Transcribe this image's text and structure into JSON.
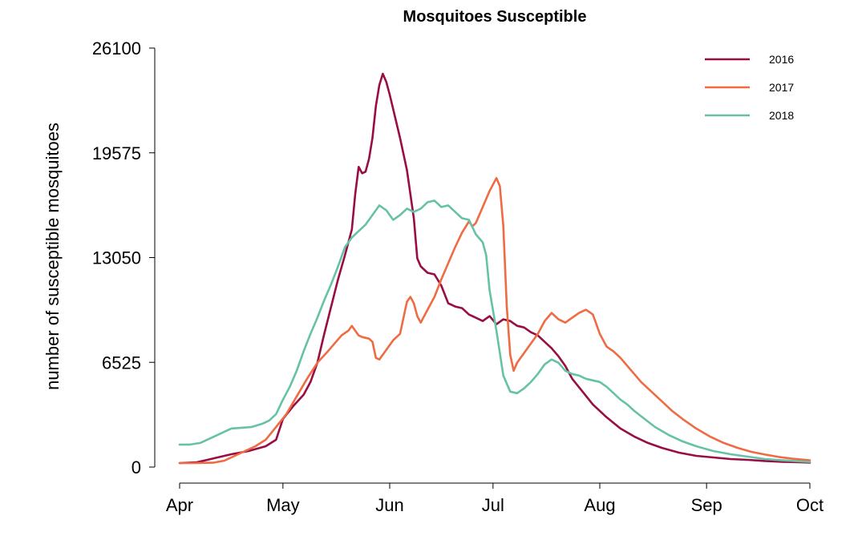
{
  "chart_data": {
    "type": "line",
    "title": "Mosquitoes Susceptible",
    "xlabel": "",
    "ylabel": "number of susceptible mosquitoes",
    "x_axis": {
      "min_day": 0,
      "max_day": 183,
      "ticks": [
        {
          "day": 0,
          "label": "Apr"
        },
        {
          "day": 30,
          "label": "May"
        },
        {
          "day": 61,
          "label": "Jun"
        },
        {
          "day": 91,
          "label": "Jul"
        },
        {
          "day": 122,
          "label": "Aug"
        },
        {
          "day": 153,
          "label": "Sep"
        },
        {
          "day": 183,
          "label": "Oct"
        }
      ]
    },
    "y_axis": {
      "ylim": [
        0,
        26100
      ],
      "ticks": [
        {
          "value": 0,
          "label": "0"
        },
        {
          "value": 6525,
          "label": "6525"
        },
        {
          "value": 13050,
          "label": "13050"
        },
        {
          "value": 19575,
          "label": "19575"
        },
        {
          "value": 26100,
          "label": "26100"
        }
      ]
    },
    "grid": false,
    "legend": "top-right",
    "series": [
      {
        "name": "2016",
        "color": "#990d45",
        "points": [
          [
            0,
            250
          ],
          [
            5,
            300
          ],
          [
            10,
            550
          ],
          [
            15,
            800
          ],
          [
            20,
            1000
          ],
          [
            25,
            1300
          ],
          [
            28,
            1700
          ],
          [
            30,
            3000
          ],
          [
            33,
            3800
          ],
          [
            36,
            4500
          ],
          [
            38,
            5300
          ],
          [
            40,
            6500
          ],
          [
            42,
            8300
          ],
          [
            44,
            10000
          ],
          [
            46,
            11700
          ],
          [
            48,
            13200
          ],
          [
            50,
            14800
          ],
          [
            51,
            17000
          ],
          [
            52,
            18700
          ],
          [
            53,
            18300
          ],
          [
            54,
            18400
          ],
          [
            55,
            19200
          ],
          [
            56,
            20500
          ],
          [
            57,
            22500
          ],
          [
            58,
            23800
          ],
          [
            59,
            24500
          ],
          [
            60,
            24000
          ],
          [
            61,
            23200
          ],
          [
            62,
            22300
          ],
          [
            64,
            20500
          ],
          [
            66,
            18500
          ],
          [
            68,
            15500
          ],
          [
            69,
            13000
          ],
          [
            70,
            12500
          ],
          [
            72,
            12100
          ],
          [
            74,
            12000
          ],
          [
            76,
            11300
          ],
          [
            78,
            10200
          ],
          [
            80,
            10000
          ],
          [
            82,
            9900
          ],
          [
            84,
            9500
          ],
          [
            86,
            9300
          ],
          [
            88,
            9100
          ],
          [
            90,
            9400
          ],
          [
            92,
            8900
          ],
          [
            94,
            9200
          ],
          [
            96,
            9100
          ],
          [
            98,
            8800
          ],
          [
            100,
            8700
          ],
          [
            102,
            8400
          ],
          [
            104,
            8200
          ],
          [
            106,
            7800
          ],
          [
            108,
            7400
          ],
          [
            110,
            6900
          ],
          [
            112,
            6300
          ],
          [
            114,
            5500
          ],
          [
            117,
            4700
          ],
          [
            120,
            3900
          ],
          [
            124,
            3100
          ],
          [
            128,
            2400
          ],
          [
            132,
            1900
          ],
          [
            136,
            1500
          ],
          [
            140,
            1200
          ],
          [
            145,
            900
          ],
          [
            150,
            700
          ],
          [
            155,
            600
          ],
          [
            160,
            500
          ],
          [
            165,
            450
          ],
          [
            170,
            380
          ],
          [
            175,
            330
          ],
          [
            180,
            300
          ],
          [
            183,
            280
          ]
        ]
      },
      {
        "name": "2017",
        "color": "#ee6b43",
        "points": [
          [
            0,
            250
          ],
          [
            5,
            250
          ],
          [
            10,
            280
          ],
          [
            13,
            400
          ],
          [
            16,
            700
          ],
          [
            19,
            1000
          ],
          [
            22,
            1300
          ],
          [
            25,
            1700
          ],
          [
            28,
            2500
          ],
          [
            31,
            3300
          ],
          [
            34,
            4400
          ],
          [
            37,
            5500
          ],
          [
            40,
            6500
          ],
          [
            43,
            7200
          ],
          [
            45,
            7700
          ],
          [
            47,
            8200
          ],
          [
            49,
            8500
          ],
          [
            50,
            8800
          ],
          [
            52,
            8200
          ],
          [
            53,
            8100
          ],
          [
            55,
            8000
          ],
          [
            56,
            7800
          ],
          [
            57,
            6800
          ],
          [
            58,
            6700
          ],
          [
            60,
            7300
          ],
          [
            62,
            7900
          ],
          [
            64,
            8300
          ],
          [
            65,
            9300
          ],
          [
            66,
            10300
          ],
          [
            67,
            10600
          ],
          [
            68,
            10200
          ],
          [
            69,
            9400
          ],
          [
            70,
            9000
          ],
          [
            72,
            9800
          ],
          [
            74,
            10600
          ],
          [
            76,
            11700
          ],
          [
            78,
            12700
          ],
          [
            80,
            13700
          ],
          [
            82,
            14600
          ],
          [
            84,
            15300
          ],
          [
            85,
            15000
          ],
          [
            86,
            15200
          ],
          [
            88,
            16200
          ],
          [
            90,
            17200
          ],
          [
            92,
            18000
          ],
          [
            93,
            17500
          ],
          [
            94,
            15000
          ],
          [
            95,
            10000
          ],
          [
            96,
            7000
          ],
          [
            97,
            6000
          ],
          [
            98,
            6500
          ],
          [
            100,
            7100
          ],
          [
            102,
            7700
          ],
          [
            104,
            8300
          ],
          [
            106,
            9100
          ],
          [
            108,
            9600
          ],
          [
            110,
            9200
          ],
          [
            112,
            9000
          ],
          [
            114,
            9300
          ],
          [
            116,
            9600
          ],
          [
            118,
            9800
          ],
          [
            120,
            9500
          ],
          [
            122,
            8300
          ],
          [
            124,
            7500
          ],
          [
            126,
            7200
          ],
          [
            128,
            6800
          ],
          [
            130,
            6300
          ],
          [
            132,
            5800
          ],
          [
            134,
            5300
          ],
          [
            137,
            4700
          ],
          [
            140,
            4100
          ],
          [
            143,
            3500
          ],
          [
            146,
            3000
          ],
          [
            150,
            2400
          ],
          [
            154,
            1900
          ],
          [
            158,
            1500
          ],
          [
            162,
            1200
          ],
          [
            166,
            950
          ],
          [
            170,
            780
          ],
          [
            174,
            630
          ],
          [
            178,
            520
          ],
          [
            183,
            420
          ]
        ]
      },
      {
        "name": "2018",
        "color": "#66c2a5",
        "points": [
          [
            0,
            1400
          ],
          [
            3,
            1400
          ],
          [
            6,
            1500
          ],
          [
            9,
            1800
          ],
          [
            12,
            2100
          ],
          [
            15,
            2400
          ],
          [
            18,
            2450
          ],
          [
            21,
            2500
          ],
          [
            24,
            2700
          ],
          [
            26,
            2900
          ],
          [
            28,
            3300
          ],
          [
            30,
            4200
          ],
          [
            32,
            5000
          ],
          [
            34,
            6000
          ],
          [
            36,
            7200
          ],
          [
            38,
            8300
          ],
          [
            40,
            9300
          ],
          [
            42,
            10400
          ],
          [
            44,
            11400
          ],
          [
            46,
            12500
          ],
          [
            48,
            13700
          ],
          [
            50,
            14300
          ],
          [
            52,
            14700
          ],
          [
            54,
            15100
          ],
          [
            56,
            15700
          ],
          [
            58,
            16300
          ],
          [
            60,
            16000
          ],
          [
            62,
            15400
          ],
          [
            64,
            15700
          ],
          [
            66,
            16100
          ],
          [
            68,
            15900
          ],
          [
            70,
            16100
          ],
          [
            72,
            16500
          ],
          [
            74,
            16600
          ],
          [
            76,
            16200
          ],
          [
            78,
            16300
          ],
          [
            80,
            15900
          ],
          [
            82,
            15500
          ],
          [
            84,
            15400
          ],
          [
            86,
            14500
          ],
          [
            88,
            14000
          ],
          [
            89,
            13200
          ],
          [
            90,
            11000
          ],
          [
            92,
            8500
          ],
          [
            94,
            5700
          ],
          [
            96,
            4700
          ],
          [
            98,
            4600
          ],
          [
            100,
            4900
          ],
          [
            102,
            5300
          ],
          [
            104,
            5800
          ],
          [
            106,
            6400
          ],
          [
            108,
            6700
          ],
          [
            110,
            6500
          ],
          [
            112,
            6000
          ],
          [
            114,
            5800
          ],
          [
            116,
            5700
          ],
          [
            118,
            5500
          ],
          [
            120,
            5400
          ],
          [
            122,
            5300
          ],
          [
            124,
            5000
          ],
          [
            126,
            4600
          ],
          [
            128,
            4200
          ],
          [
            130,
            3900
          ],
          [
            132,
            3500
          ],
          [
            135,
            3000
          ],
          [
            138,
            2500
          ],
          [
            142,
            2000
          ],
          [
            146,
            1600
          ],
          [
            150,
            1300
          ],
          [
            155,
            1000
          ],
          [
            160,
            800
          ],
          [
            165,
            650
          ],
          [
            170,
            500
          ],
          [
            175,
            420
          ],
          [
            180,
            360
          ],
          [
            183,
            320
          ]
        ]
      }
    ]
  }
}
